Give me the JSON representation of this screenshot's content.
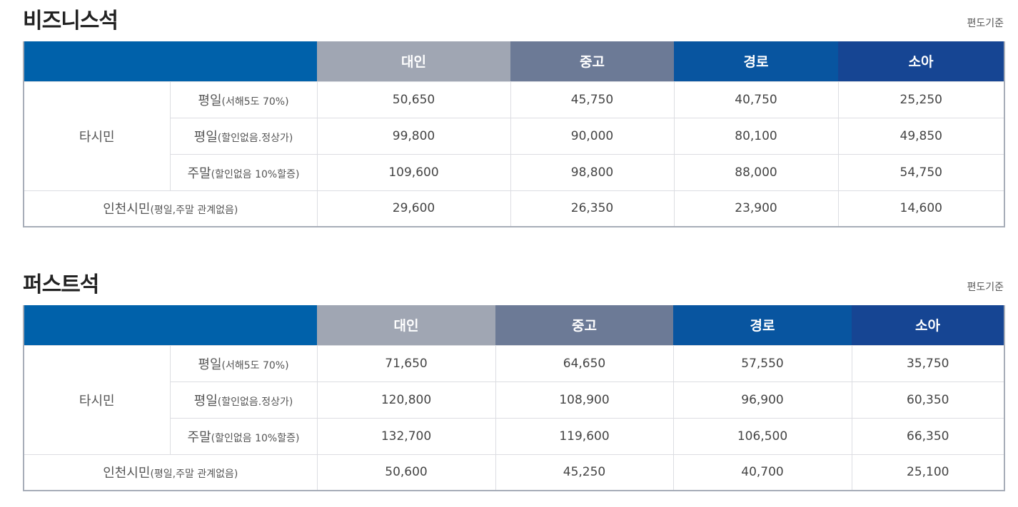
{
  "business": {
    "title": "비즈니스석",
    "note": "편도기준",
    "headers": [
      "대인",
      "중고",
      "경로",
      "소아"
    ],
    "group_label": "타시민",
    "rows": [
      {
        "main": "평일",
        "sub": "(서해5도 70%)",
        "values": [
          "50,650",
          "45,750",
          "40,750",
          "25,250"
        ]
      },
      {
        "main": "평일",
        "sub": "(할인없음.정상가)",
        "values": [
          "99,800",
          "90,000",
          "80,100",
          "49,850"
        ]
      },
      {
        "main": "주말",
        "sub": "(할인없음 10%할증)",
        "values": [
          "109,600",
          "98,800",
          "88,000",
          "54,750"
        ]
      }
    ],
    "incheon": {
      "main": "인천시민",
      "sub": "(평일,주말 관계없음)",
      "values": [
        "29,600",
        "26,350",
        "23,900",
        "14,600"
      ]
    }
  },
  "first": {
    "title": "퍼스트석",
    "note": "편도기준",
    "headers": [
      "대인",
      "중고",
      "경로",
      "소아"
    ],
    "group_label": "타시민",
    "rows": [
      {
        "main": "평일",
        "sub": "(서해5도 70%)",
        "values": [
          "71,650",
          "64,650",
          "57,550",
          "35,750"
        ]
      },
      {
        "main": "평일",
        "sub": "(할인없음.정상가)",
        "values": [
          "120,800",
          "108,900",
          "96,900",
          "60,350"
        ]
      },
      {
        "main": "주말",
        "sub": "(할인없음 10%할증)",
        "values": [
          "132,700",
          "119,600",
          "106,500",
          "66,350"
        ]
      }
    ],
    "incheon": {
      "main": "인천시민",
      "sub": "(평일,주말 관계없음)",
      "values": [
        "50,600",
        "45,250",
        "40,700",
        "25,100"
      ]
    }
  },
  "colors": {
    "header_blank": "#0061aa",
    "header_adult": "#a0a6b3",
    "header_student": "#6c7a96",
    "header_senior": "#0855a0",
    "header_child": "#164593"
  }
}
